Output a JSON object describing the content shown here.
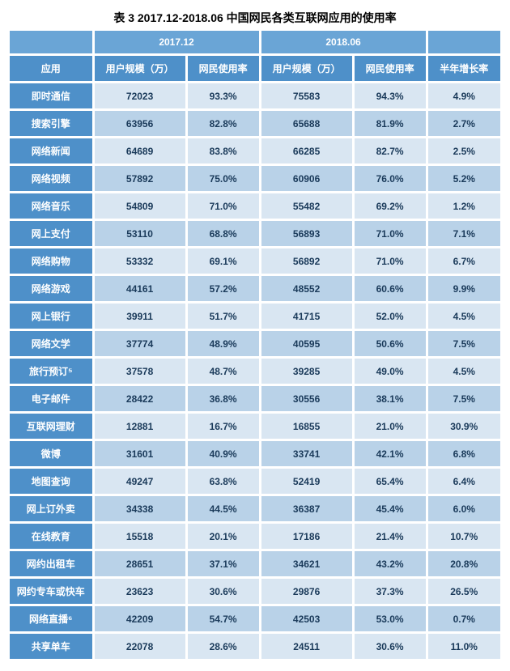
{
  "caption": "表 3   2017.12-2018.06 中国网民各类互联网应用的使用率",
  "top_headers": {
    "g1": "2017.12",
    "g2": "2018.06",
    "g3": ""
  },
  "sub_headers": {
    "app": "应用",
    "u1": "用户规模（万）",
    "r1": "网民使用率",
    "u2": "用户规模（万）",
    "r2": "网民使用率",
    "growth": "半年增长率"
  },
  "rows": [
    {
      "label": "即时通信",
      "u1": "72023",
      "r1": "93.3%",
      "u2": "75583",
      "r2": "94.3%",
      "g": "4.9%"
    },
    {
      "label": "搜索引擎",
      "u1": "63956",
      "r1": "82.8%",
      "u2": "65688",
      "r2": "81.9%",
      "g": "2.7%"
    },
    {
      "label": "网络新闻",
      "u1": "64689",
      "r1": "83.8%",
      "u2": "66285",
      "r2": "82.7%",
      "g": "2.5%"
    },
    {
      "label": "网络视频",
      "u1": "57892",
      "r1": "75.0%",
      "u2": "60906",
      "r2": "76.0%",
      "g": "5.2%"
    },
    {
      "label": "网络音乐",
      "u1": "54809",
      "r1": "71.0%",
      "u2": "55482",
      "r2": "69.2%",
      "g": "1.2%"
    },
    {
      "label": "网上支付",
      "u1": "53110",
      "r1": "68.8%",
      "u2": "56893",
      "r2": "71.0%",
      "g": "7.1%"
    },
    {
      "label": "网络购物",
      "u1": "53332",
      "r1": "69.1%",
      "u2": "56892",
      "r2": "71.0%",
      "g": "6.7%"
    },
    {
      "label": "网络游戏",
      "u1": "44161",
      "r1": "57.2%",
      "u2": "48552",
      "r2": "60.6%",
      "g": "9.9%"
    },
    {
      "label": "网上银行",
      "u1": "39911",
      "r1": "51.7%",
      "u2": "41715",
      "r2": "52.0%",
      "g": "4.5%"
    },
    {
      "label": "网络文学",
      "u1": "37774",
      "r1": "48.9%",
      "u2": "40595",
      "r2": "50.6%",
      "g": "7.5%"
    },
    {
      "label": "旅行预订⁵",
      "u1": "37578",
      "r1": "48.7%",
      "u2": "39285",
      "r2": "49.0%",
      "g": "4.5%"
    },
    {
      "label": "电子邮件",
      "u1": "28422",
      "r1": "36.8%",
      "u2": "30556",
      "r2": "38.1%",
      "g": "7.5%"
    },
    {
      "label": "互联网理财",
      "u1": "12881",
      "r1": "16.7%",
      "u2": "16855",
      "r2": "21.0%",
      "g": "30.9%"
    },
    {
      "label": "微博",
      "u1": "31601",
      "r1": "40.9%",
      "u2": "33741",
      "r2": "42.1%",
      "g": "6.8%"
    },
    {
      "label": "地图查询",
      "u1": "49247",
      "r1": "63.8%",
      "u2": "52419",
      "r2": "65.4%",
      "g": "6.4%"
    },
    {
      "label": "网上订外卖",
      "u1": "34338",
      "r1": "44.5%",
      "u2": "36387",
      "r2": "45.4%",
      "g": "6.0%"
    },
    {
      "label": "在线教育",
      "u1": "15518",
      "r1": "20.1%",
      "u2": "17186",
      "r2": "21.4%",
      "g": "10.7%"
    },
    {
      "label": "网约出租车",
      "u1": "28651",
      "r1": "37.1%",
      "u2": "34621",
      "r2": "43.2%",
      "g": "20.8%"
    },
    {
      "label": "网约专车或快车",
      "u1": "23623",
      "r1": "30.6%",
      "u2": "29876",
      "r2": "37.3%",
      "g": "26.5%"
    },
    {
      "label": "网络直播⁶",
      "u1": "42209",
      "r1": "54.7%",
      "u2": "42503",
      "r2": "53.0%",
      "g": "0.7%"
    },
    {
      "label": "共享单车",
      "u1": "22078",
      "r1": "28.6%",
      "u2": "24511",
      "r2": "30.6%",
      "g": "11.0%"
    }
  ],
  "style": {
    "top_header_bg": "#6aa5d6",
    "sub_header_bg": "#4e90c9",
    "row_label_bg": "#4e90c9",
    "band_a_bg": "#d9e6f2",
    "band_b_bg": "#b9d2e8",
    "header_text": "#ffffff",
    "data_text": "#1a3a5a",
    "border_color": "#ffffff",
    "font_size_caption": 14,
    "font_size_cell": 12
  }
}
